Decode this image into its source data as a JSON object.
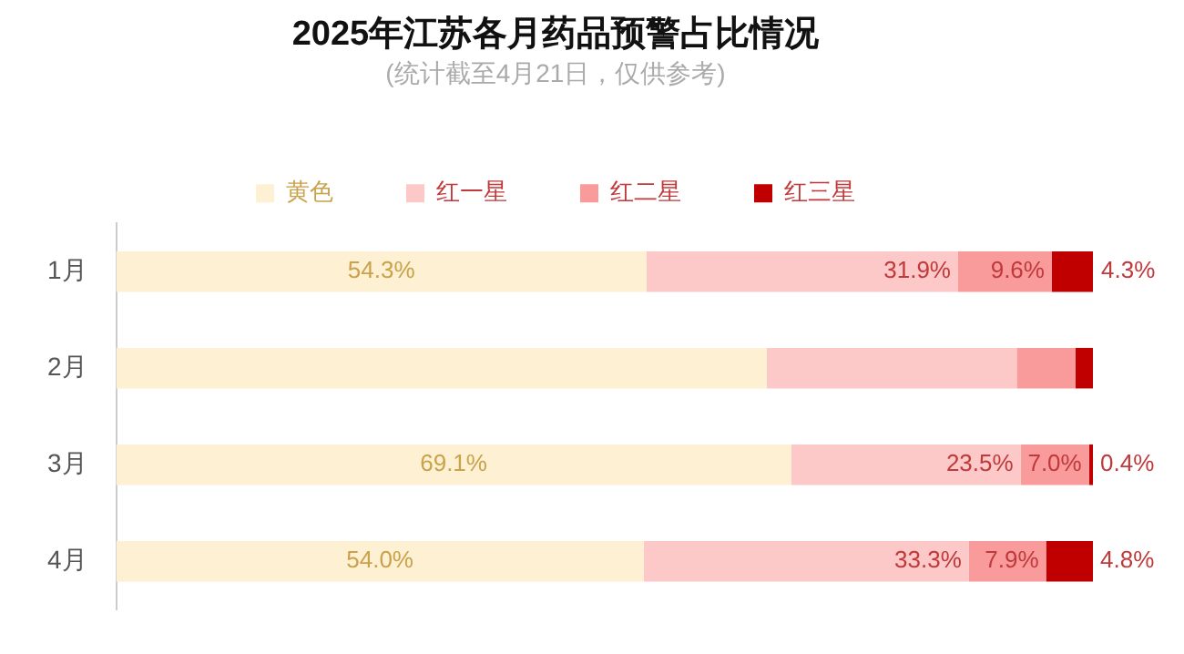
{
  "chart_data": {
    "type": "bar",
    "orientation": "horizontal",
    "stacked": true,
    "title": "2025年江苏各月药品预警占比情况",
    "subtitle": "(统计截至4月21日，仅供参考)",
    "categories": [
      "1月",
      "2月",
      "3月",
      "4月"
    ],
    "series": [
      {
        "name": "黄色",
        "color": "#fdf0d3",
        "values": [
          54.3,
          66.6,
          69.1,
          54.0
        ],
        "value_labels": [
          "54.3%",
          null,
          "69.1%",
          "54.0%"
        ]
      },
      {
        "name": "红一星",
        "color": "#fcc8c8",
        "values": [
          31.9,
          25.6,
          23.5,
          33.3
        ],
        "value_labels": [
          "31.9%",
          null,
          "23.5%",
          "33.3%"
        ]
      },
      {
        "name": "红二星",
        "color": "#f99b9b",
        "values": [
          9.6,
          6.0,
          7.0,
          7.9
        ],
        "value_labels": [
          "9.6%",
          null,
          "7.0%",
          "7.9%"
        ]
      },
      {
        "name": "红三星",
        "color": "#c00000",
        "values": [
          4.3,
          1.8,
          0.4,
          4.8
        ],
        "value_labels": [
          "4.3%",
          null,
          "0.4%",
          "4.8%"
        ]
      }
    ],
    "xlim": [
      0,
      100
    ],
    "tick_labels": "y",
    "legend": "top"
  }
}
